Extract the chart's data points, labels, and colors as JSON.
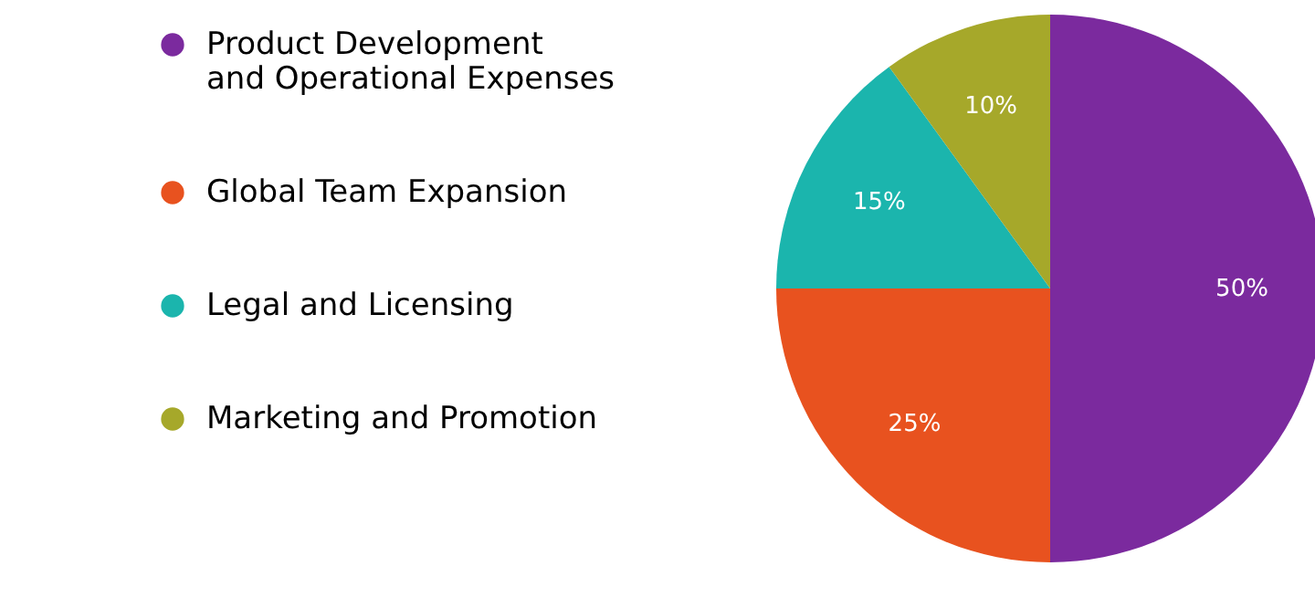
{
  "chart_data": {
    "type": "pie",
    "categories": [
      "Product Development and Operational Expenses",
      "Global Team Expansion",
      "Legal and Licensing",
      "Marketing and Promotion"
    ],
    "values": [
      50,
      25,
      15,
      10
    ],
    "colors": [
      "#7b2a9e",
      "#e8521f",
      "#1bb5ad",
      "#a6a82a"
    ],
    "value_labels": [
      "50%",
      "25%",
      "15%",
      "10%"
    ],
    "legend": "left"
  }
}
